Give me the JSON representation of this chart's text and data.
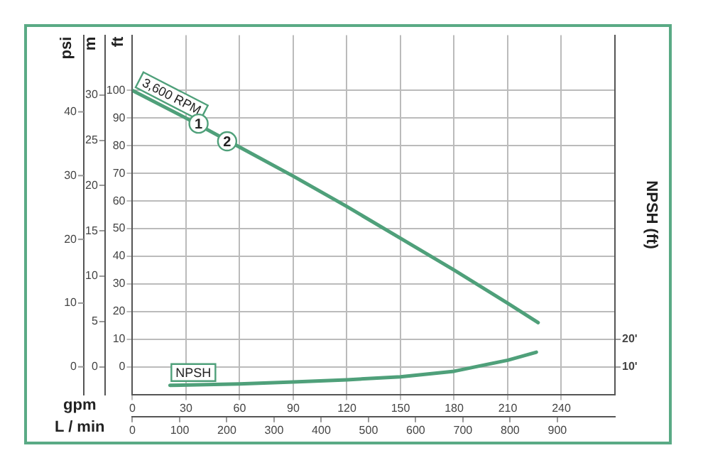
{
  "chart_data": {
    "type": "line",
    "xlabel": "gpm",
    "x2label": "L / min",
    "ylabel": "ft",
    "y2label": "NPSH (ft)",
    "y3label": "m",
    "x": [
      0,
      30,
      60,
      90,
      120,
      150,
      180,
      210,
      227
    ],
    "series": [
      {
        "name": "3,600 RPM",
        "color": "#4fa07a",
        "values": [
          100,
          90,
          79.5,
          69,
          58,
          46.5,
          35,
          23,
          16
        ]
      },
      {
        "name": "NPSH",
        "color": "#4fa07a",
        "axis": "y2",
        "x": [
          21,
          60,
          90,
          120,
          150,
          180,
          210,
          226
        ],
        "values": [
          3.3,
          3.8,
          4.5,
          5.3,
          6.4,
          8.4,
          12.4,
          15.3
        ]
      }
    ],
    "annotations": [
      "psi",
      "0",
      "10",
      "20",
      "30",
      "40",
      {
        "text": "1",
        "x": 37,
        "y": 88
      },
      {
        "text": "2",
        "x": 53,
        "y": 81.6
      }
    ],
    "xlim": [
      0,
      270
    ],
    "xticks": [
      0,
      30,
      60,
      90,
      120,
      150,
      180,
      210,
      240
    ],
    "x2lim": [
      0,
      1022
    ],
    "x2ticks": [
      0,
      100,
      200,
      300,
      400,
      500,
      600,
      700,
      800,
      900
    ],
    "ylim": [
      -10,
      120
    ],
    "yticks": [
      0,
      10,
      20,
      30,
      40,
      50,
      60,
      70,
      80,
      90,
      100
    ],
    "y2lim": [
      0,
      130
    ],
    "y2ticks": [
      {
        "value": 10,
        "label": "10'"
      },
      {
        "value": 20,
        "label": "20'"
      }
    ],
    "y3lim": [
      -3.05,
      36.6
    ],
    "y3ticks": [
      0,
      5,
      10,
      15,
      20,
      25,
      30
    ],
    "grid": true,
    "legend": false,
    "marker": "none",
    "line_style": "solid"
  }
}
